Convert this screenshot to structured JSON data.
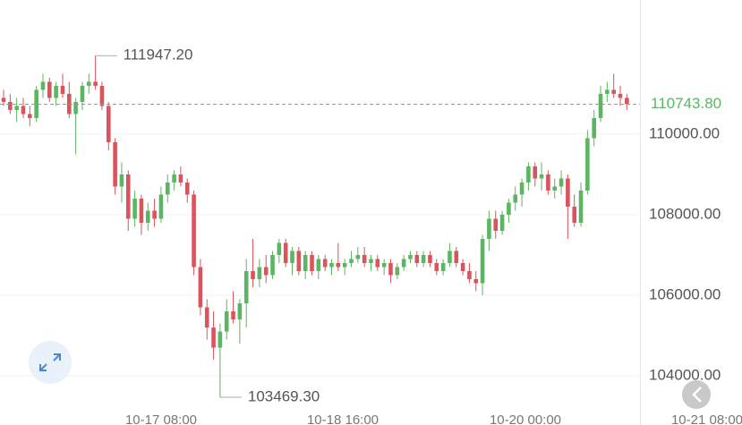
{
  "chart_data": {
    "type": "candlestick",
    "up_color": "#5cb563",
    "down_color": "#d9545c",
    "ylim": [
      102780,
      113330
    ],
    "yticks": [
      {
        "value": 104000,
        "label": "104000.00"
      },
      {
        "value": 106000,
        "label": "106000.00"
      },
      {
        "value": 108000,
        "label": "108000.00"
      },
      {
        "value": 110000,
        "label": "110000.00"
      }
    ],
    "grid": true,
    "x_labels": [
      "10-17 08:00",
      "10-18 16:00",
      "10-20 00:00",
      "10-21 08:00"
    ],
    "max_marker": {
      "value": 111947.2,
      "label": "111947.20"
    },
    "min_marker": {
      "value": 103469.3,
      "label": "103469.30"
    },
    "last_price": {
      "value": 110743.8,
      "label": "110743.80"
    },
    "ohlc": [
      [
        110900,
        111100,
        110700,
        110800
      ],
      [
        110800,
        111000,
        110500,
        110600
      ],
      [
        110600,
        110900,
        110300,
        110700
      ],
      [
        110700,
        110900,
        110400,
        110500
      ],
      [
        110500,
        110700,
        110200,
        110400
      ],
      [
        110400,
        111200,
        110300,
        111100
      ],
      [
        111100,
        111500,
        110900,
        111300
      ],
      [
        111300,
        111400,
        110800,
        110900
      ],
      [
        110900,
        111300,
        110700,
        111200
      ],
      [
        111200,
        111500,
        110900,
        111000
      ],
      [
        111000,
        111300,
        110400,
        110500
      ],
      [
        110500,
        110900,
        109500,
        110800
      ],
      [
        110800,
        111300,
        110600,
        111200
      ],
      [
        111200,
        111500,
        111000,
        111300
      ],
      [
        111300,
        111947.2,
        111100,
        111200
      ],
      [
        111200,
        111300,
        110600,
        110700
      ],
      [
        110700,
        110800,
        109600,
        109800
      ],
      [
        109800,
        109900,
        108500,
        108700
      ],
      [
        108700,
        109300,
        108300,
        109000
      ],
      [
        109000,
        109100,
        107600,
        107900
      ],
      [
        107900,
        108600,
        107700,
        108400
      ],
      [
        108400,
        108500,
        107500,
        107800
      ],
      [
        107800,
        108300,
        107600,
        108100
      ],
      [
        108100,
        108400,
        107700,
        107900
      ],
      [
        107900,
        108700,
        107800,
        108500
      ],
      [
        108500,
        109000,
        108300,
        108800
      ],
      [
        108800,
        109100,
        108600,
        109000
      ],
      [
        109000,
        109200,
        108700,
        108800
      ],
      [
        108800,
        108900,
        108300,
        108500
      ],
      [
        108500,
        108600,
        106500,
        106700
      ],
      [
        106700,
        106900,
        105500,
        105700
      ],
      [
        105700,
        105900,
        104900,
        105200
      ],
      [
        105200,
        105600,
        104400,
        104700
      ],
      [
        104700,
        105300,
        103469.3,
        105100
      ],
      [
        105100,
        105900,
        104900,
        105600
      ],
      [
        105600,
        106100,
        105300,
        105400
      ],
      [
        105400,
        105900,
        104800,
        105800
      ],
      [
        105800,
        106900,
        105200,
        106600
      ],
      [
        106600,
        107400,
        106200,
        106400
      ],
      [
        106400,
        106900,
        106200,
        106700
      ],
      [
        106700,
        107000,
        106300,
        106500
      ],
      [
        106500,
        107100,
        106400,
        107000
      ],
      [
        107000,
        107400,
        106800,
        107300
      ],
      [
        107300,
        107400,
        106700,
        106800
      ],
      [
        106800,
        107200,
        106500,
        107100
      ],
      [
        107100,
        107200,
        106500,
        106600
      ],
      [
        106600,
        107100,
        106400,
        107000
      ],
      [
        107000,
        107100,
        106500,
        106600
      ],
      [
        106600,
        107000,
        106400,
        106900
      ],
      [
        106900,
        107000,
        106600,
        106700
      ],
      [
        106700,
        106900,
        106500,
        106800
      ],
      [
        106800,
        107300,
        106600,
        106700
      ],
      [
        106700,
        106900,
        106500,
        106800
      ],
      [
        106800,
        107100,
        106700,
        106900
      ],
      [
        106900,
        107200,
        106800,
        107000
      ],
      [
        107000,
        107200,
        106700,
        106800
      ],
      [
        106800,
        107000,
        106600,
        106900
      ],
      [
        106900,
        107000,
        106600,
        106700
      ],
      [
        106700,
        106900,
        106500,
        106800
      ],
      [
        106800,
        106900,
        106300,
        106500
      ],
      [
        106500,
        106800,
        106400,
        106700
      ],
      [
        106700,
        107000,
        106600,
        106900
      ],
      [
        106900,
        107100,
        106800,
        107000
      ],
      [
        107000,
        107100,
        106700,
        106800
      ],
      [
        106800,
        107100,
        106700,
        107000
      ],
      [
        107000,
        107100,
        106700,
        106800
      ],
      [
        106800,
        106900,
        106500,
        106600
      ],
      [
        106600,
        106900,
        106500,
        106800
      ],
      [
        106800,
        107300,
        106700,
        107100
      ],
      [
        107100,
        107200,
        106700,
        106800
      ],
      [
        106800,
        106900,
        106500,
        106600
      ],
      [
        106600,
        106800,
        106300,
        106400
      ],
      [
        106400,
        106600,
        106100,
        106300
      ],
      [
        106300,
        107500,
        106000,
        107400
      ],
      [
        107400,
        108100,
        107100,
        107900
      ],
      [
        107900,
        108100,
        107400,
        107600
      ],
      [
        107600,
        108100,
        107500,
        108000
      ],
      [
        108000,
        108400,
        107800,
        108300
      ],
      [
        108300,
        108700,
        108100,
        108500
      ],
      [
        108500,
        108900,
        108200,
        108800
      ],
      [
        108800,
        109300,
        108600,
        109200
      ],
      [
        109200,
        109300,
        108700,
        108900
      ],
      [
        108900,
        109300,
        108600,
        109000
      ],
      [
        109000,
        109100,
        108500,
        108600
      ],
      [
        108600,
        108900,
        108400,
        108700
      ],
      [
        108700,
        109100,
        108500,
        108900
      ],
      [
        108900,
        109000,
        107400,
        108200
      ],
      [
        108200,
        108500,
        107700,
        107800
      ],
      [
        107800,
        108800,
        107700,
        108600
      ],
      [
        108600,
        110100,
        108500,
        109900
      ],
      [
        109900,
        110600,
        109700,
        110400
      ],
      [
        110400,
        111200,
        110300,
        111000
      ],
      [
        111000,
        111300,
        110800,
        111100
      ],
      [
        111100,
        111500,
        110900,
        111000
      ],
      [
        111000,
        111200,
        110700,
        110900
      ],
      [
        110900,
        111000,
        110600,
        110743.8
      ]
    ]
  }
}
